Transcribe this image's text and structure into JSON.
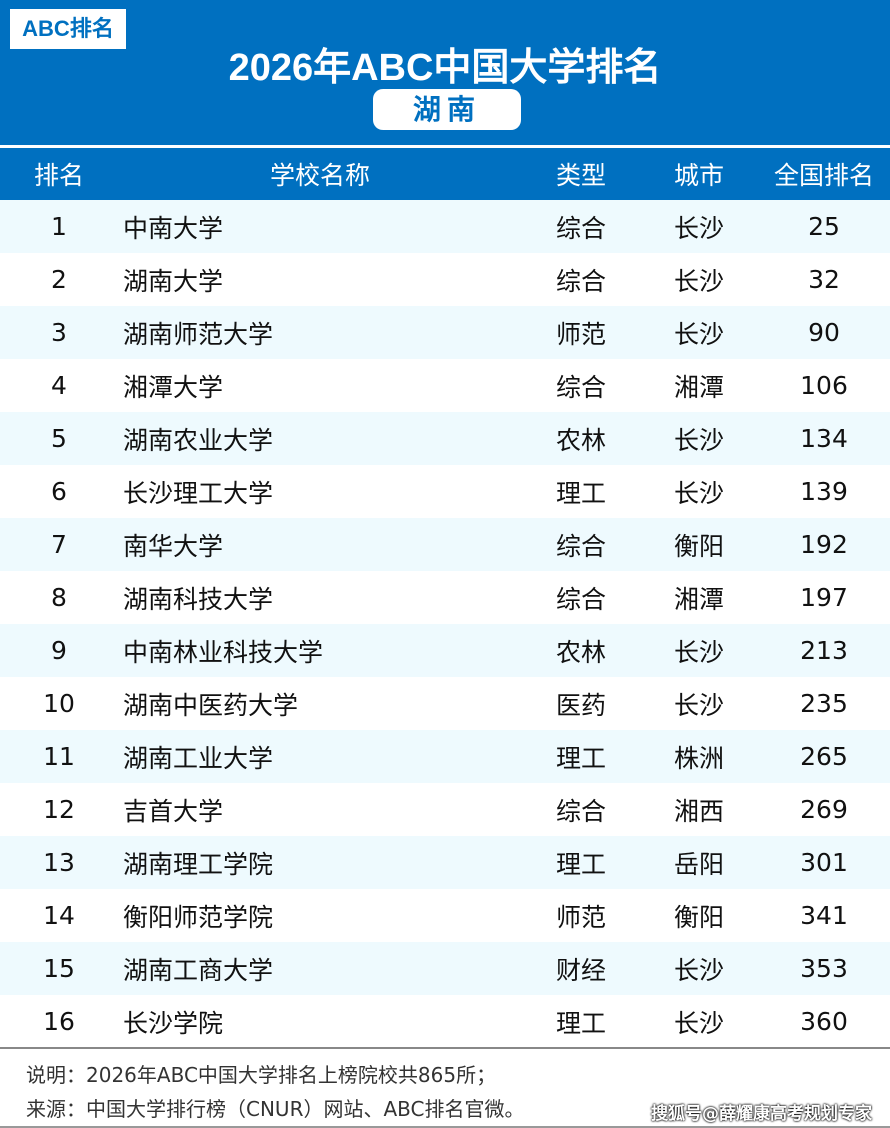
{
  "header": {
    "logo": "ABC排名",
    "title": "2026年ABC中国大学排名",
    "region": "湖南"
  },
  "table": {
    "columns": [
      "排名",
      "学校名称",
      "类型",
      "城市",
      "全国排名"
    ],
    "rows": [
      [
        "1",
        "中南大学",
        "综合",
        "长沙",
        "25"
      ],
      [
        "2",
        "湖南大学",
        "综合",
        "长沙",
        "32"
      ],
      [
        "3",
        "湖南师范大学",
        "师范",
        "长沙",
        "90"
      ],
      [
        "4",
        "湘潭大学",
        "综合",
        "湘潭",
        "106"
      ],
      [
        "5",
        "湖南农业大学",
        "农林",
        "长沙",
        "134"
      ],
      [
        "6",
        "长沙理工大学",
        "理工",
        "长沙",
        "139"
      ],
      [
        "7",
        "南华大学",
        "综合",
        "衡阳",
        "192"
      ],
      [
        "8",
        "湖南科技大学",
        "综合",
        "湘潭",
        "197"
      ],
      [
        "9",
        "中南林业科技大学",
        "农林",
        "长沙",
        "213"
      ],
      [
        "10",
        "湖南中医药大学",
        "医药",
        "长沙",
        "235"
      ],
      [
        "11",
        "湖南工业大学",
        "理工",
        "株洲",
        "265"
      ],
      [
        "12",
        "吉首大学",
        "综合",
        "湘西",
        "269"
      ],
      [
        "13",
        "湖南理工学院",
        "理工",
        "岳阳",
        "301"
      ],
      [
        "14",
        "衡阳师范学院",
        "师范",
        "衡阳",
        "341"
      ],
      [
        "15",
        "湖南工商大学",
        "财经",
        "长沙",
        "353"
      ],
      [
        "16",
        "长沙学院",
        "理工",
        "长沙",
        "360"
      ]
    ]
  },
  "footer": {
    "note": "说明：2026年ABC中国大学排名上榜院校共865所；",
    "source": "来源：中国大学排行榜（CNUR）网站、ABC排名官微。",
    "watermark": "搜狐号@薛耀康高考规划专家"
  },
  "colors": {
    "brand": "#0070c0",
    "row_alt": "#eefafe"
  }
}
